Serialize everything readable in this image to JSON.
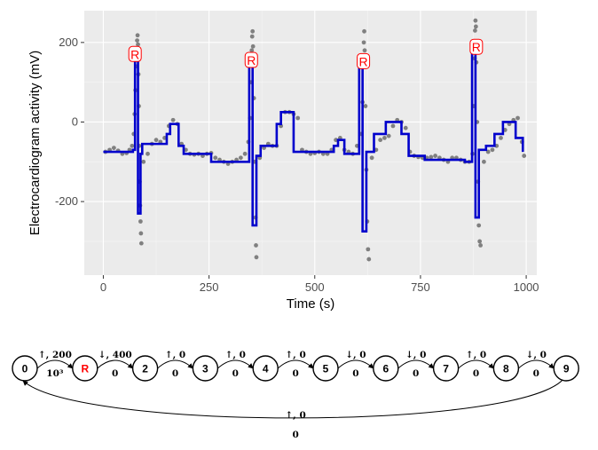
{
  "chart_data": [
    {
      "type": "line",
      "title": "",
      "xlabel": "Time (s)",
      "ylabel": "Electrocardiogram activity (mV)",
      "xlim": [
        -45,
        1025
      ],
      "ylim": [
        -385,
        280
      ],
      "xticks": [
        0,
        250,
        500,
        750,
        1000
      ],
      "xtick_labels": [
        "0",
        "250",
        "500",
        "750",
        "1000"
      ],
      "yticks": [
        -200,
        0,
        200
      ],
      "ytick_labels": [
        "-200",
        "0",
        "200"
      ],
      "grid": true,
      "background": "#ebebeb",
      "colors": {
        "observations": "#808080",
        "fit": "#0000cc",
        "peak_label": "#ff0000"
      },
      "peak_labels": [
        {
          "x": 75,
          "y": 170,
          "text": "R"
        },
        {
          "x": 350,
          "y": 155,
          "text": "R"
        },
        {
          "x": 615,
          "y": 152,
          "text": "R"
        },
        {
          "x": 882,
          "y": 188,
          "text": "R"
        }
      ],
      "series": [
        {
          "kind": "observations",
          "points": [
            [
              5,
              -75
            ],
            [
              15,
              -70
            ],
            [
              25,
              -65
            ],
            [
              35,
              -72
            ],
            [
              45,
              -80
            ],
            [
              55,
              -78
            ],
            [
              62,
              -70
            ],
            [
              68,
              -60
            ],
            [
              72,
              -30
            ],
            [
              74,
              20
            ],
            [
              76,
              80
            ],
            [
              78,
              140
            ],
            [
              79,
              185
            ],
            [
              80,
              205
            ],
            [
              81,
              218
            ],
            [
              82,
              195
            ],
            [
              83,
              120
            ],
            [
              84,
              40
            ],
            [
              85,
              -60
            ],
            [
              86,
              -150
            ],
            [
              87,
              -210
            ],
            [
              88,
              -250
            ],
            [
              89,
              -280
            ],
            [
              90,
              -305
            ],
            [
              95,
              -100
            ],
            [
              105,
              -80
            ],
            [
              115,
              -55
            ],
            [
              125,
              -45
            ],
            [
              135,
              -50
            ],
            [
              145,
              -40
            ],
            [
              155,
              -10
            ],
            [
              165,
              5
            ],
            [
              175,
              -5
            ],
            [
              185,
              -55
            ],
            [
              195,
              -70
            ],
            [
              205,
              -80
            ],
            [
              215,
              -82
            ],
            [
              225,
              -80
            ],
            [
              235,
              -85
            ],
            [
              245,
              -80
            ],
            [
              255,
              -78
            ],
            [
              265,
              -90
            ],
            [
              275,
              -95
            ],
            [
              285,
              -100
            ],
            [
              295,
              -105
            ],
            [
              305,
              -100
            ],
            [
              315,
              -95
            ],
            [
              325,
              -90
            ],
            [
              335,
              -80
            ],
            [
              343,
              -50
            ],
            [
              347,
              10
            ],
            [
              349,
              100
            ],
            [
              351,
              180
            ],
            [
              352,
              215
            ],
            [
              353,
              228
            ],
            [
              354,
              190
            ],
            [
              356,
              60
            ],
            [
              358,
              -100
            ],
            [
              360,
              -240
            ],
            [
              361,
              -310
            ],
            [
              362,
              -340
            ],
            [
              370,
              -90
            ],
            [
              380,
              -65
            ],
            [
              390,
              -55
            ],
            [
              400,
              -60
            ],
            [
              410,
              -60
            ],
            [
              420,
              -10
            ],
            [
              430,
              25
            ],
            [
              440,
              25
            ],
            [
              450,
              20
            ],
            [
              460,
              10
            ],
            [
              470,
              -70
            ],
            [
              480,
              -75
            ],
            [
              490,
              -80
            ],
            [
              500,
              -78
            ],
            [
              510,
              -75
            ],
            [
              520,
              -80
            ],
            [
              530,
              -80
            ],
            [
              540,
              -70
            ],
            [
              550,
              -45
            ],
            [
              560,
              -40
            ],
            [
              570,
              -70
            ],
            [
              580,
              -75
            ],
            [
              590,
              -80
            ],
            [
              600,
              -60
            ],
            [
              610,
              -30
            ],
            [
              613,
              50
            ],
            [
              615,
              150
            ],
            [
              616,
              200
            ],
            [
              617,
              228
            ],
            [
              618,
              180
            ],
            [
              620,
              40
            ],
            [
              622,
              -120
            ],
            [
              624,
              -250
            ],
            [
              626,
              -320
            ],
            [
              628,
              -345
            ],
            [
              635,
              -90
            ],
            [
              645,
              -70
            ],
            [
              655,
              -45
            ],
            [
              665,
              -40
            ],
            [
              675,
              -35
            ],
            [
              685,
              -10
            ],
            [
              695,
              5
            ],
            [
              705,
              0
            ],
            [
              715,
              -15
            ],
            [
              725,
              -75
            ],
            [
              735,
              -85
            ],
            [
              745,
              -88
            ],
            [
              755,
              -90
            ],
            [
              765,
              -90
            ],
            [
              775,
              -88
            ],
            [
              785,
              -85
            ],
            [
              795,
              -90
            ],
            [
              805,
              -95
            ],
            [
              815,
              -100
            ],
            [
              825,
              -90
            ],
            [
              835,
              -90
            ],
            [
              845,
              -95
            ],
            [
              855,
              -100
            ],
            [
              865,
              -100
            ],
            [
              873,
              -80
            ],
            [
              876,
              40
            ],
            [
              878,
              160
            ],
            [
              879,
              230
            ],
            [
              880,
              255
            ],
            [
              881,
              240
            ],
            [
              882,
              150
            ],
            [
              884,
              0
            ],
            [
              886,
              -150
            ],
            [
              888,
              -260
            ],
            [
              890,
              -300
            ],
            [
              892,
              -310
            ],
            [
              900,
              -100
            ],
            [
              910,
              -75
            ],
            [
              920,
              -70
            ],
            [
              930,
              -60
            ],
            [
              940,
              -40
            ],
            [
              950,
              -20
            ],
            [
              960,
              -5
            ],
            [
              970,
              5
            ],
            [
              980,
              10
            ],
            [
              990,
              -50
            ],
            [
              995,
              -85
            ]
          ]
        },
        {
          "kind": "fit",
          "points": [
            [
              0,
              -75
            ],
            [
              70,
              -75
            ],
            [
              70,
              -70
            ],
            [
              75,
              -70
            ],
            [
              75,
              170
            ],
            [
              82,
              170
            ],
            [
              82,
              -230
            ],
            [
              88,
              -230
            ],
            [
              88,
              -80
            ],
            [
              92,
              -80
            ],
            [
              92,
              -55
            ],
            [
              150,
              -55
            ],
            [
              150,
              -30
            ],
            [
              158,
              -30
            ],
            [
              158,
              -5
            ],
            [
              178,
              -5
            ],
            [
              178,
              -60
            ],
            [
              190,
              -60
            ],
            [
              190,
              -80
            ],
            [
              255,
              -80
            ],
            [
              255,
              -100
            ],
            [
              345,
              -100
            ],
            [
              345,
              155
            ],
            [
              353,
              155
            ],
            [
              353,
              -260
            ],
            [
              362,
              -260
            ],
            [
              362,
              -85
            ],
            [
              372,
              -85
            ],
            [
              372,
              -60
            ],
            [
              410,
              -60
            ],
            [
              410,
              -5
            ],
            [
              420,
              -5
            ],
            [
              420,
              25
            ],
            [
              450,
              25
            ],
            [
              450,
              -75
            ],
            [
              545,
              -75
            ],
            [
              545,
              -60
            ],
            [
              555,
              -60
            ],
            [
              555,
              -45
            ],
            [
              570,
              -45
            ],
            [
              570,
              -80
            ],
            [
              605,
              -80
            ],
            [
              605,
              152
            ],
            [
              613,
              152
            ],
            [
              613,
              -275
            ],
            [
              622,
              -275
            ],
            [
              622,
              -75
            ],
            [
              640,
              -75
            ],
            [
              640,
              -30
            ],
            [
              668,
              -30
            ],
            [
              668,
              0
            ],
            [
              705,
              0
            ],
            [
              705,
              -30
            ],
            [
              722,
              -30
            ],
            [
              722,
              -85
            ],
            [
              760,
              -85
            ],
            [
              760,
              -95
            ],
            [
              855,
              -95
            ],
            [
              855,
              -100
            ],
            [
              872,
              -100
            ],
            [
              872,
              188
            ],
            [
              880,
              188
            ],
            [
              880,
              -240
            ],
            [
              888,
              -240
            ],
            [
              888,
              -70
            ],
            [
              905,
              -70
            ],
            [
              905,
              -60
            ],
            [
              925,
              -60
            ],
            [
              925,
              -30
            ],
            [
              945,
              -30
            ],
            [
              945,
              0
            ],
            [
              975,
              0
            ],
            [
              975,
              -40
            ],
            [
              992,
              -40
            ],
            [
              992,
              -75
            ]
          ]
        }
      ]
    },
    {
      "type": "diagram",
      "nodes": [
        "0",
        "R",
        "2",
        "3",
        "4",
        "5",
        "6",
        "7",
        "8",
        "9"
      ],
      "node_label_colors": {
        "R": "#ff0000"
      },
      "edges": [
        {
          "from": "0",
          "to": "R",
          "top": "↑, 200",
          "bottom": "10³"
        },
        {
          "from": "R",
          "to": "2",
          "top": "↓, 400",
          "bottom": "0"
        },
        {
          "from": "2",
          "to": "3",
          "top": "↑, 0",
          "bottom": "0"
        },
        {
          "from": "3",
          "to": "4",
          "top": "↑, 0",
          "bottom": "0"
        },
        {
          "from": "4",
          "to": "5",
          "top": "↑, 0",
          "bottom": "0"
        },
        {
          "from": "5",
          "to": "6",
          "top": "↓, 0",
          "bottom": "0"
        },
        {
          "from": "6",
          "to": "7",
          "top": "↓, 0",
          "bottom": "0"
        },
        {
          "from": "7",
          "to": "8",
          "top": "↑, 0",
          "bottom": "0"
        },
        {
          "from": "8",
          "to": "9",
          "top": "↓, 0",
          "bottom": "0"
        },
        {
          "from": "9",
          "to": "0",
          "top": "↑, 0",
          "bottom": "0",
          "return": true
        }
      ]
    }
  ]
}
